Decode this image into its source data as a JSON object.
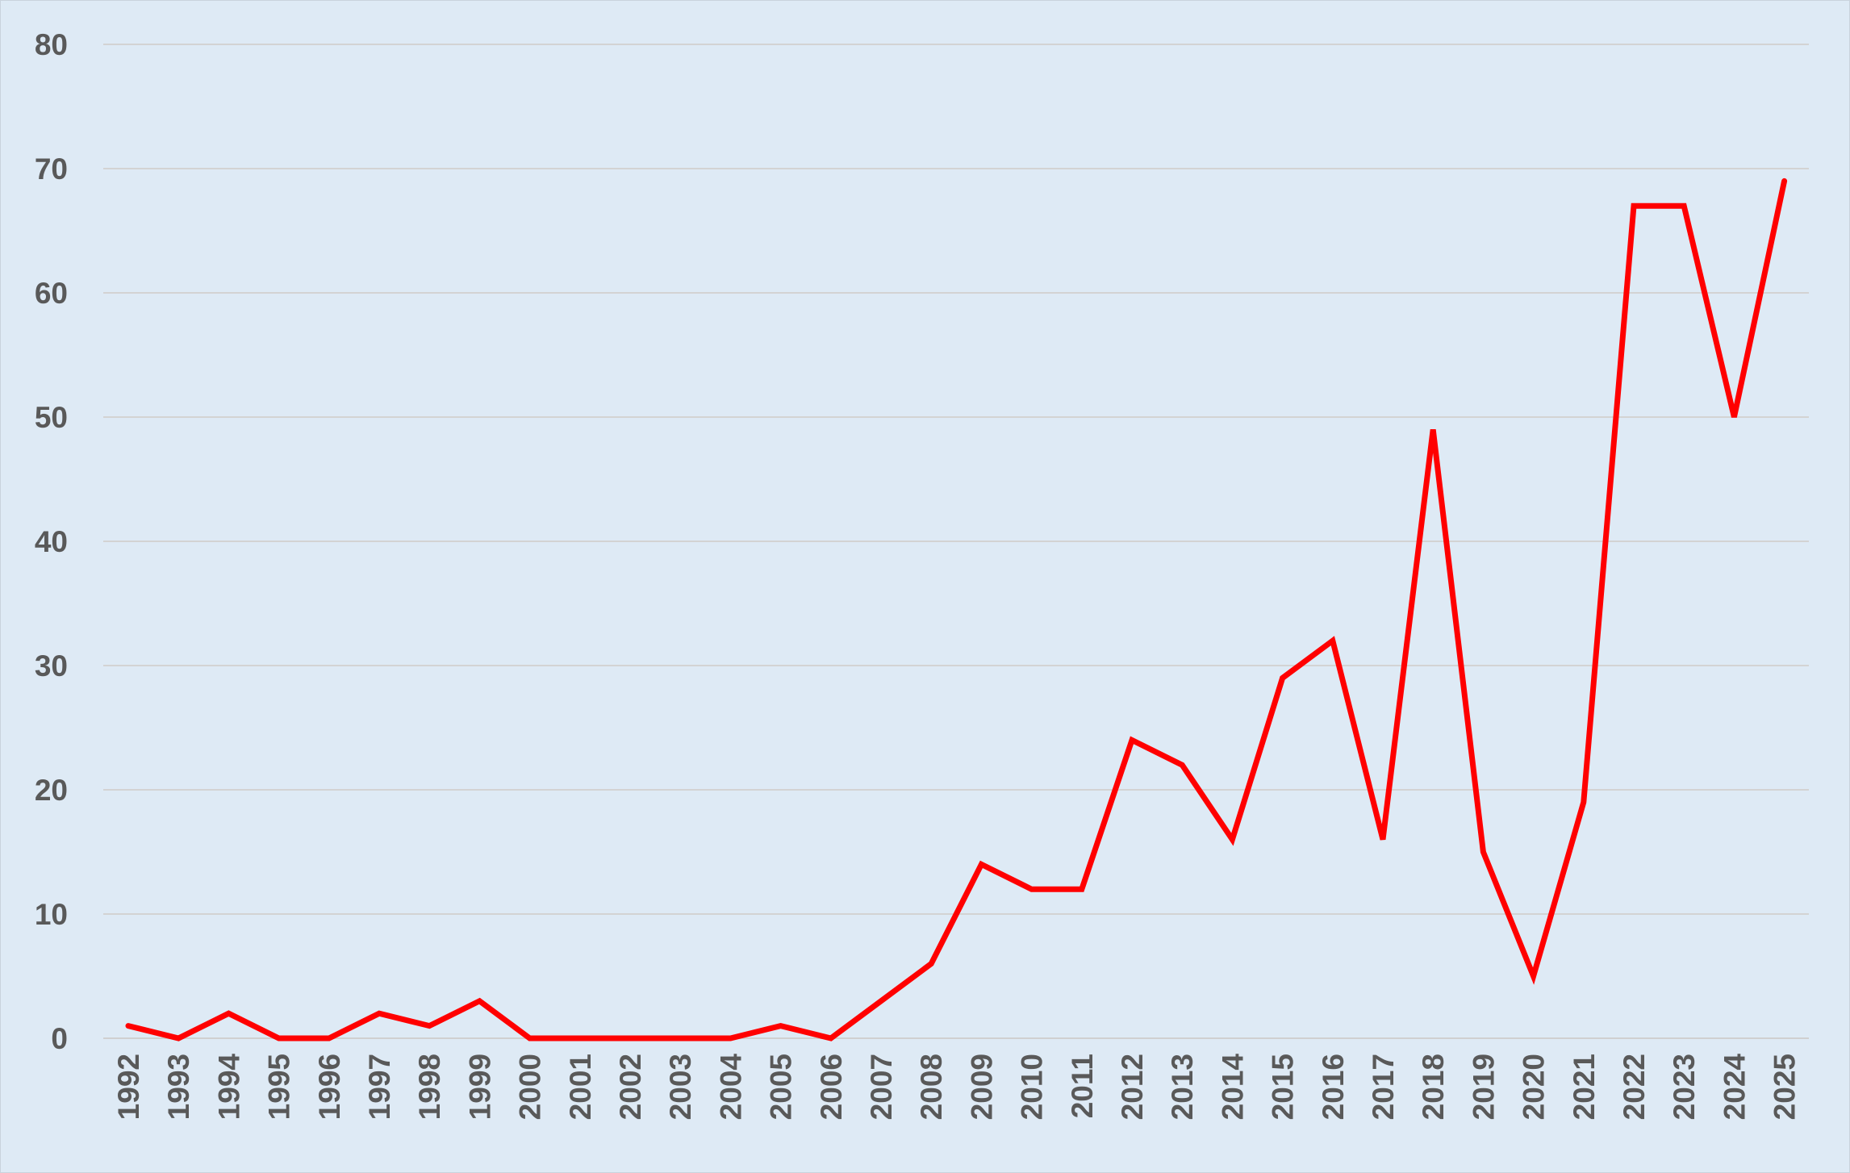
{
  "chart_data": {
    "type": "line",
    "title": "",
    "xlabel": "",
    "ylabel": "",
    "categories": [
      "1992",
      "1993",
      "1994",
      "1995",
      "1996",
      "1997",
      "1998",
      "1999",
      "2000",
      "2001",
      "2002",
      "2003",
      "2004",
      "2005",
      "2006",
      "2007",
      "2008",
      "2009",
      "2010",
      "2011",
      "2012",
      "2013",
      "2014",
      "2015",
      "2016",
      "2017",
      "2018",
      "2019",
      "2020",
      "2021",
      "2022",
      "2023",
      "2024",
      "2025"
    ],
    "series": [
      {
        "values": [
          1,
          0,
          2,
          0,
          0,
          2,
          1,
          3,
          0,
          0,
          0,
          0,
          0,
          1,
          0,
          3,
          6,
          14,
          12,
          12,
          24,
          22,
          16,
          29,
          32,
          16,
          49,
          15,
          5,
          19,
          67,
          67,
          50,
          69
        ]
      }
    ],
    "ylim": [
      0,
      80
    ],
    "yticks": [
      0,
      10,
      20,
      30,
      40,
      50,
      60,
      70,
      80
    ],
    "grid": true,
    "legend": "none",
    "colors": {
      "series": "#ff0000",
      "background": "#deeaf5",
      "gridline": "#d3d3d3",
      "tick_label": "#595959"
    }
  }
}
